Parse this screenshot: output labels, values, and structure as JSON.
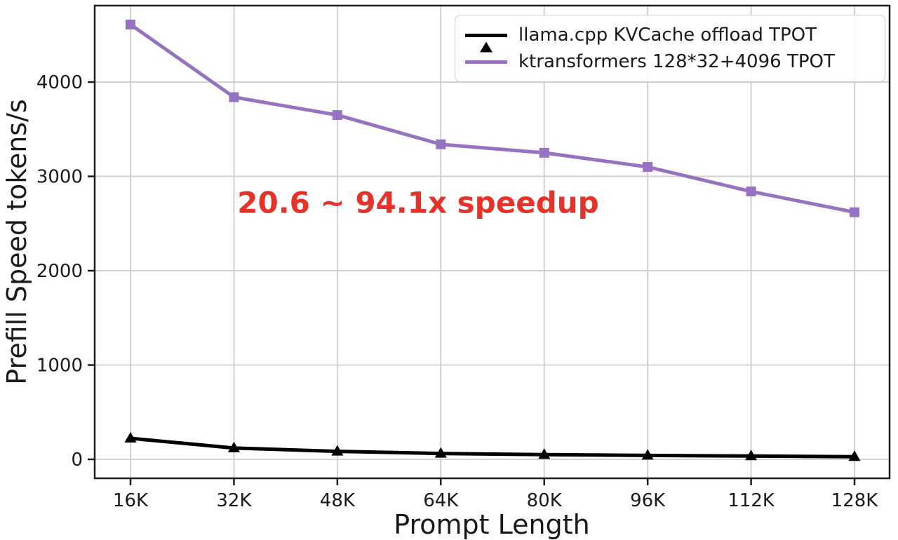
{
  "chart_data": {
    "type": "line",
    "categories": [
      "16K",
      "32K",
      "48K",
      "64K",
      "80K",
      "96K",
      "112K",
      "128K"
    ],
    "series": [
      {
        "name": "llama.cpp KVCache offload TPOT",
        "color": "#000000",
        "marker": "triangle",
        "values": [
          223,
          120,
          85,
          62,
          50,
          42,
          35,
          28
        ]
      },
      {
        "name": "ktransformers 128*32+4096 TPOT",
        "color": "#9673c1",
        "marker": "square",
        "values": [
          4610,
          3840,
          3650,
          3340,
          3250,
          3100,
          2840,
          2620
        ]
      }
    ],
    "annotation": {
      "text": "20.6 ~ 94.1x speedup",
      "color": "#e6332a"
    },
    "xlabel": "Prompt Length",
    "ylabel": "Prefill Speed tokens/s",
    "yticks": [
      0,
      1000,
      2000,
      3000,
      4000
    ],
    "ylim": [
      -200,
      4810
    ],
    "grid": true,
    "grid_color": "#cccccc",
    "axis_color": "#1a1a1a",
    "legend_position": "top-right"
  }
}
